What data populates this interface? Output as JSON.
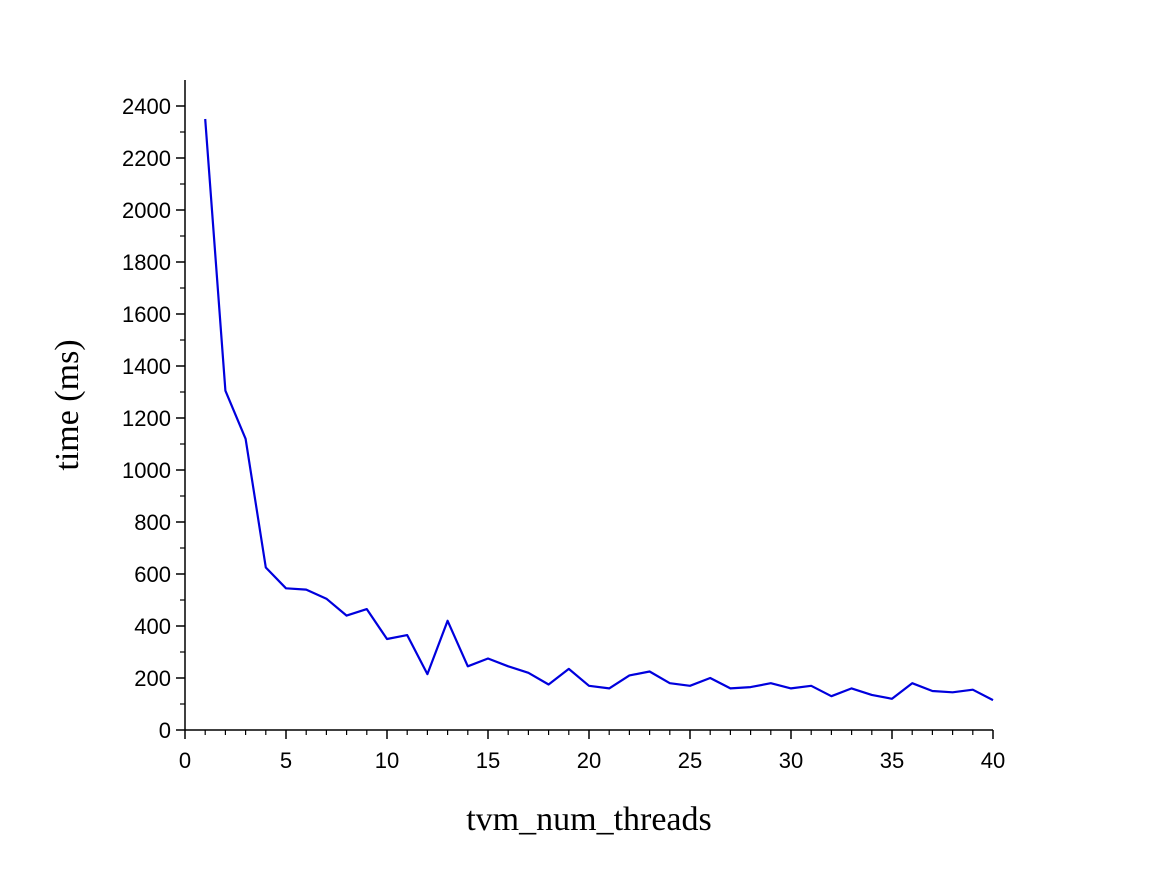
{
  "chart_data": {
    "type": "line",
    "title": "",
    "xlabel": "tvm_num_threads",
    "ylabel": "time (ms)",
    "xlim": [
      0,
      40
    ],
    "ylim": [
      0,
      2500
    ],
    "xticks": [
      0,
      5,
      10,
      15,
      20,
      25,
      30,
      35,
      40
    ],
    "yticks": [
      0,
      200,
      400,
      600,
      800,
      1000,
      1200,
      1400,
      1600,
      1800,
      2000,
      2200,
      2400
    ],
    "grid": false,
    "legend": "none",
    "series": [
      {
        "color": "#0000dd",
        "x": [
          1,
          2,
          3,
          4,
          5,
          6,
          7,
          8,
          9,
          10,
          11,
          12,
          13,
          14,
          15,
          16,
          17,
          18,
          19,
          20,
          21,
          22,
          23,
          24,
          25,
          26,
          27,
          28,
          29,
          30,
          31,
          32,
          33,
          34,
          35,
          36,
          37,
          38,
          39,
          40
        ],
        "y": [
          2350,
          1305,
          1120,
          625,
          545,
          540,
          505,
          440,
          465,
          350,
          365,
          215,
          420,
          245,
          275,
          245,
          220,
          175,
          235,
          170,
          160,
          210,
          225,
          180,
          170,
          200,
          160,
          165,
          180,
          160,
          170,
          130,
          160,
          135,
          120,
          180,
          150,
          145,
          155,
          115
        ]
      }
    ]
  }
}
